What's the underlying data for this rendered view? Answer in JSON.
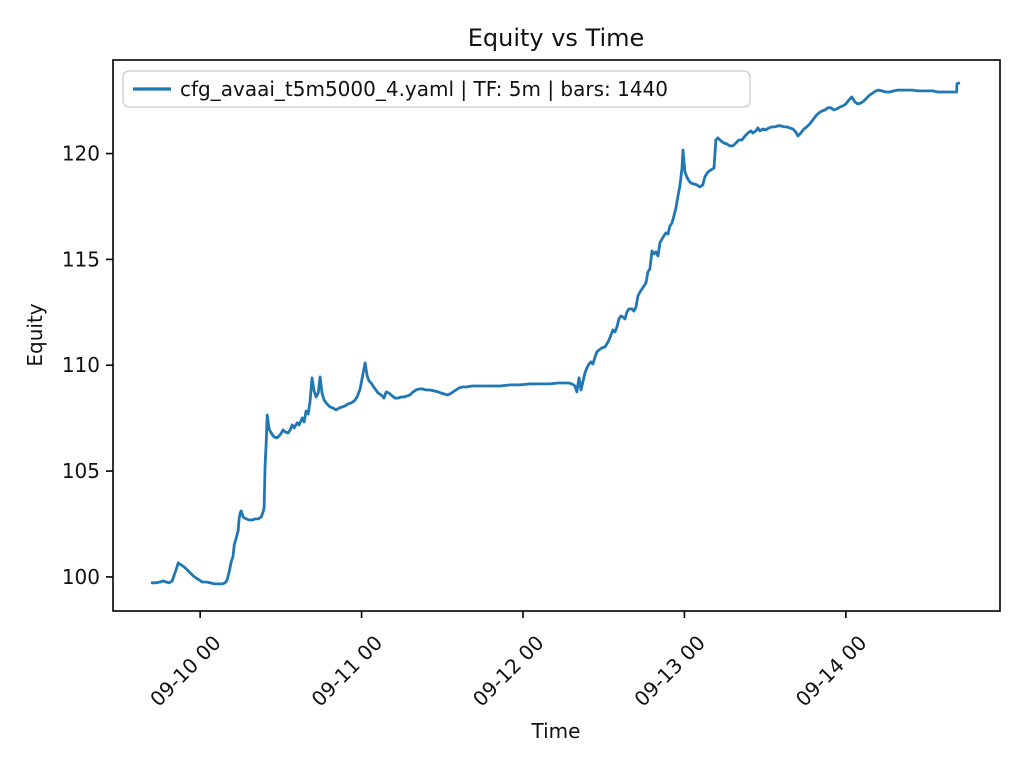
{
  "chart_data": {
    "type": "line",
    "title": "Equity vs Time",
    "xlabel": "Time",
    "ylabel": "Equity",
    "grid": false,
    "legend_position": "upper left",
    "legend": [
      {
        "label": "cfg_avaai_t5m5000_4.yaml | TF: 5m | bars: 1440",
        "color": "#1f77b4"
      }
    ],
    "line_color": "#1f77b4",
    "line_width": 2.8,
    "x_axis": {
      "unit": "days relative to 09-10 00",
      "lim": [
        -0.54,
        4.955
      ],
      "tick_values": [
        0,
        1,
        2,
        3,
        4
      ],
      "tick_labels": [
        "09-10 00",
        "09-11 00",
        "09-12 00",
        "09-13 00",
        "09-14 00"
      ],
      "tick_rotation_deg": 45
    },
    "y_axis": {
      "lim": [
        98.39,
        124.42
      ],
      "tick_values": [
        100,
        105,
        110,
        115,
        120
      ],
      "tick_labels": [
        "100",
        "105",
        "110",
        "115",
        "120"
      ]
    },
    "series": [
      {
        "name": "cfg_avaai_t5m5000_4.yaml | TF: 5m | bars: 1440",
        "timeframe": "5m",
        "bars": 1440,
        "points": [
          [
            -0.297,
            99.72
          ],
          [
            -0.272,
            99.72
          ],
          [
            -0.248,
            99.76
          ],
          [
            -0.229,
            99.81
          ],
          [
            -0.211,
            99.76
          ],
          [
            -0.192,
            99.72
          ],
          [
            -0.173,
            99.81
          ],
          [
            -0.161,
            100.09
          ],
          [
            -0.149,
            100.33
          ],
          [
            -0.136,
            100.66
          ],
          [
            -0.118,
            100.57
          ],
          [
            -0.099,
            100.47
          ],
          [
            -0.08,
            100.33
          ],
          [
            -0.062,
            100.19
          ],
          [
            -0.043,
            100.05
          ],
          [
            -0.025,
            99.95
          ],
          [
            -0.006,
            99.86
          ],
          [
            0.012,
            99.76
          ],
          [
            0.037,
            99.76
          ],
          [
            0.062,
            99.72
          ],
          [
            0.087,
            99.67
          ],
          [
            0.111,
            99.67
          ],
          [
            0.136,
            99.67
          ],
          [
            0.155,
            99.72
          ],
          [
            0.167,
            99.86
          ],
          [
            0.18,
            100.24
          ],
          [
            0.192,
            100.71
          ],
          [
            0.204,
            100.99
          ],
          [
            0.211,
            101.51
          ],
          [
            0.223,
            101.84
          ],
          [
            0.235,
            102.17
          ],
          [
            0.241,
            102.74
          ],
          [
            0.248,
            103.02
          ],
          [
            0.254,
            103.12
          ],
          [
            0.266,
            102.83
          ],
          [
            0.285,
            102.74
          ],
          [
            0.303,
            102.69
          ],
          [
            0.322,
            102.69
          ],
          [
            0.341,
            102.74
          ],
          [
            0.359,
            102.74
          ],
          [
            0.378,
            102.83
          ],
          [
            0.39,
            103.07
          ],
          [
            0.396,
            103.26
          ],
          [
            0.402,
            105.29
          ],
          [
            0.409,
            106.33
          ],
          [
            0.415,
            107.65
          ],
          [
            0.427,
            106.99
          ],
          [
            0.44,
            106.8
          ],
          [
            0.458,
            106.61
          ],
          [
            0.477,
            106.57
          ],
          [
            0.495,
            106.71
          ],
          [
            0.514,
            106.94
          ],
          [
            0.526,
            106.85
          ],
          [
            0.545,
            106.8
          ],
          [
            0.557,
            106.94
          ],
          [
            0.57,
            107.18
          ],
          [
            0.582,
            107.04
          ],
          [
            0.601,
            107.28
          ],
          [
            0.613,
            107.18
          ],
          [
            0.632,
            107.51
          ],
          [
            0.644,
            107.32
          ],
          [
            0.656,
            107.84
          ],
          [
            0.669,
            107.7
          ],
          [
            0.681,
            108.31
          ],
          [
            0.693,
            109.4
          ],
          [
            0.706,
            108.79
          ],
          [
            0.718,
            108.5
          ],
          [
            0.731,
            108.69
          ],
          [
            0.743,
            109.45
          ],
          [
            0.755,
            108.69
          ],
          [
            0.768,
            108.36
          ],
          [
            0.786,
            108.17
          ],
          [
            0.805,
            108.03
          ],
          [
            0.823,
            107.98
          ],
          [
            0.842,
            107.89
          ],
          [
            0.861,
            107.98
          ],
          [
            0.879,
            108.03
          ],
          [
            0.898,
            108.08
          ],
          [
            0.916,
            108.17
          ],
          [
            0.935,
            108.22
          ],
          [
            0.954,
            108.31
          ],
          [
            0.972,
            108.5
          ],
          [
            0.991,
            108.88
          ],
          [
            1.009,
            109.59
          ],
          [
            1.022,
            110.11
          ],
          [
            1.034,
            109.5
          ],
          [
            1.046,
            109.26
          ],
          [
            1.059,
            109.16
          ],
          [
            1.071,
            109.02
          ],
          [
            1.084,
            108.88
          ],
          [
            1.102,
            108.69
          ],
          [
            1.121,
            108.6
          ],
          [
            1.139,
            108.45
          ],
          [
            1.152,
            108.74
          ],
          [
            1.17,
            108.69
          ],
          [
            1.189,
            108.55
          ],
          [
            1.207,
            108.45
          ],
          [
            1.226,
            108.45
          ],
          [
            1.245,
            108.5
          ],
          [
            1.263,
            108.5
          ],
          [
            1.282,
            108.55
          ],
          [
            1.3,
            108.6
          ],
          [
            1.319,
            108.74
          ],
          [
            1.337,
            108.83
          ],
          [
            1.356,
            108.88
          ],
          [
            1.375,
            108.88
          ],
          [
            1.399,
            108.83
          ],
          [
            1.424,
            108.83
          ],
          [
            1.449,
            108.79
          ],
          [
            1.474,
            108.74
          ],
          [
            1.492,
            108.69
          ],
          [
            1.511,
            108.64
          ],
          [
            1.53,
            108.6
          ],
          [
            1.548,
            108.64
          ],
          [
            1.567,
            108.74
          ],
          [
            1.585,
            108.83
          ],
          [
            1.604,
            108.93
          ],
          [
            1.622,
            108.97
          ],
          [
            1.647,
            108.97
          ],
          [
            1.684,
            109.02
          ],
          [
            1.734,
            109.02
          ],
          [
            1.796,
            109.02
          ],
          [
            1.858,
            109.02
          ],
          [
            1.92,
            109.07
          ],
          [
            1.981,
            109.07
          ],
          [
            2.043,
            109.12
          ],
          [
            2.105,
            109.12
          ],
          [
            2.167,
            109.12
          ],
          [
            2.217,
            109.16
          ],
          [
            2.254,
            109.16
          ],
          [
            2.285,
            109.16
          ],
          [
            2.303,
            109.12
          ],
          [
            2.322,
            109.02
          ],
          [
            2.334,
            108.74
          ],
          [
            2.347,
            109.4
          ],
          [
            2.359,
            108.83
          ],
          [
            2.372,
            109.26
          ],
          [
            2.384,
            109.64
          ],
          [
            2.396,
            109.87
          ],
          [
            2.409,
            110.06
          ],
          [
            2.421,
            110.16
          ],
          [
            2.433,
            110.06
          ],
          [
            2.446,
            110.39
          ],
          [
            2.458,
            110.63
          ],
          [
            2.471,
            110.72
          ],
          [
            2.489,
            110.82
          ],
          [
            2.508,
            110.86
          ],
          [
            2.52,
            111.01
          ],
          [
            2.533,
            111.19
          ],
          [
            2.545,
            111.43
          ],
          [
            2.557,
            111.67
          ],
          [
            2.57,
            111.57
          ],
          [
            2.582,
            111.81
          ],
          [
            2.594,
            112.19
          ],
          [
            2.607,
            112.33
          ],
          [
            2.619,
            112.28
          ],
          [
            2.632,
            112.19
          ],
          [
            2.644,
            112.52
          ],
          [
            2.656,
            112.66
          ],
          [
            2.675,
            112.66
          ],
          [
            2.687,
            112.56
          ],
          [
            2.7,
            112.75
          ],
          [
            2.712,
            113.27
          ],
          [
            2.724,
            113.46
          ],
          [
            2.737,
            113.6
          ],
          [
            2.749,
            113.75
          ],
          [
            2.762,
            113.89
          ],
          [
            2.774,
            114.41
          ],
          [
            2.786,
            114.55
          ],
          [
            2.799,
            115.4
          ],
          [
            2.811,
            115.26
          ],
          [
            2.823,
            115.35
          ],
          [
            2.836,
            115.16
          ],
          [
            2.848,
            115.78
          ],
          [
            2.861,
            115.97
          ],
          [
            2.873,
            116.11
          ],
          [
            2.885,
            116.25
          ],
          [
            2.898,
            116.2
          ],
          [
            2.91,
            116.58
          ],
          [
            2.923,
            116.72
          ],
          [
            2.935,
            117.05
          ],
          [
            2.947,
            117.43
          ],
          [
            2.96,
            118.0
          ],
          [
            2.972,
            118.47
          ],
          [
            2.985,
            119.32
          ],
          [
            2.991,
            120.17
          ],
          [
            3.003,
            119.13
          ],
          [
            3.015,
            118.9
          ],
          [
            3.028,
            118.71
          ],
          [
            3.04,
            118.61
          ],
          [
            3.059,
            118.56
          ],
          [
            3.077,
            118.52
          ],
          [
            3.096,
            118.42
          ],
          [
            3.114,
            118.52
          ],
          [
            3.127,
            118.9
          ],
          [
            3.146,
            119.13
          ],
          [
            3.164,
            119.23
          ],
          [
            3.183,
            119.32
          ],
          [
            3.195,
            120.64
          ],
          [
            3.207,
            120.74
          ],
          [
            3.226,
            120.6
          ],
          [
            3.245,
            120.5
          ],
          [
            3.263,
            120.45
          ],
          [
            3.282,
            120.36
          ],
          [
            3.3,
            120.36
          ],
          [
            3.319,
            120.5
          ],
          [
            3.337,
            120.64
          ],
          [
            3.356,
            120.64
          ],
          [
            3.375,
            120.83
          ],
          [
            3.393,
            120.97
          ],
          [
            3.412,
            121.07
          ],
          [
            3.424,
            120.97
          ],
          [
            3.443,
            121.07
          ],
          [
            3.455,
            121.21
          ],
          [
            3.467,
            121.07
          ],
          [
            3.486,
            121.16
          ],
          [
            3.505,
            121.12
          ],
          [
            3.523,
            121.21
          ],
          [
            3.542,
            121.26
          ],
          [
            3.56,
            121.26
          ],
          [
            3.579,
            121.31
          ],
          [
            3.597,
            121.31
          ],
          [
            3.616,
            121.26
          ],
          [
            3.635,
            121.26
          ],
          [
            3.653,
            121.21
          ],
          [
            3.672,
            121.16
          ],
          [
            3.69,
            121.02
          ],
          [
            3.703,
            120.83
          ],
          [
            3.721,
            120.97
          ],
          [
            3.74,
            121.16
          ],
          [
            3.758,
            121.26
          ],
          [
            3.777,
            121.4
          ],
          [
            3.796,
            121.59
          ],
          [
            3.814,
            121.78
          ],
          [
            3.833,
            121.92
          ],
          [
            3.851,
            122.01
          ],
          [
            3.87,
            122.06
          ],
          [
            3.888,
            122.16
          ],
          [
            3.907,
            122.16
          ],
          [
            3.926,
            122.06
          ],
          [
            3.944,
            122.11
          ],
          [
            3.963,
            122.2
          ],
          [
            3.981,
            122.25
          ],
          [
            4.0,
            122.34
          ],
          [
            4.019,
            122.53
          ],
          [
            4.037,
            122.67
          ],
          [
            4.056,
            122.44
          ],
          [
            4.074,
            122.34
          ],
          [
            4.093,
            122.39
          ],
          [
            4.111,
            122.48
          ],
          [
            4.13,
            122.63
          ],
          [
            4.149,
            122.77
          ],
          [
            4.167,
            122.86
          ],
          [
            4.186,
            122.96
          ],
          [
            4.204,
            123.0
          ],
          [
            4.223,
            122.96
          ],
          [
            4.248,
            122.91
          ],
          [
            4.273,
            122.91
          ],
          [
            4.297,
            122.96
          ],
          [
            4.322,
            123.0
          ],
          [
            4.353,
            123.0
          ],
          [
            4.384,
            123.0
          ],
          [
            4.415,
            123.0
          ],
          [
            4.446,
            122.96
          ],
          [
            4.477,
            122.96
          ],
          [
            4.508,
            122.96
          ],
          [
            4.539,
            122.96
          ],
          [
            4.57,
            122.91
          ],
          [
            4.601,
            122.91
          ],
          [
            4.632,
            122.91
          ],
          [
            4.663,
            122.91
          ],
          [
            4.687,
            122.91
          ],
          [
            4.688,
            123.29
          ],
          [
            4.7,
            123.33
          ]
        ]
      }
    ],
    "colors": {
      "line": "#1f77b4",
      "spine": "#000000",
      "text": "#111111",
      "legend_border": "#cccccc",
      "background": "#ffffff"
    }
  }
}
